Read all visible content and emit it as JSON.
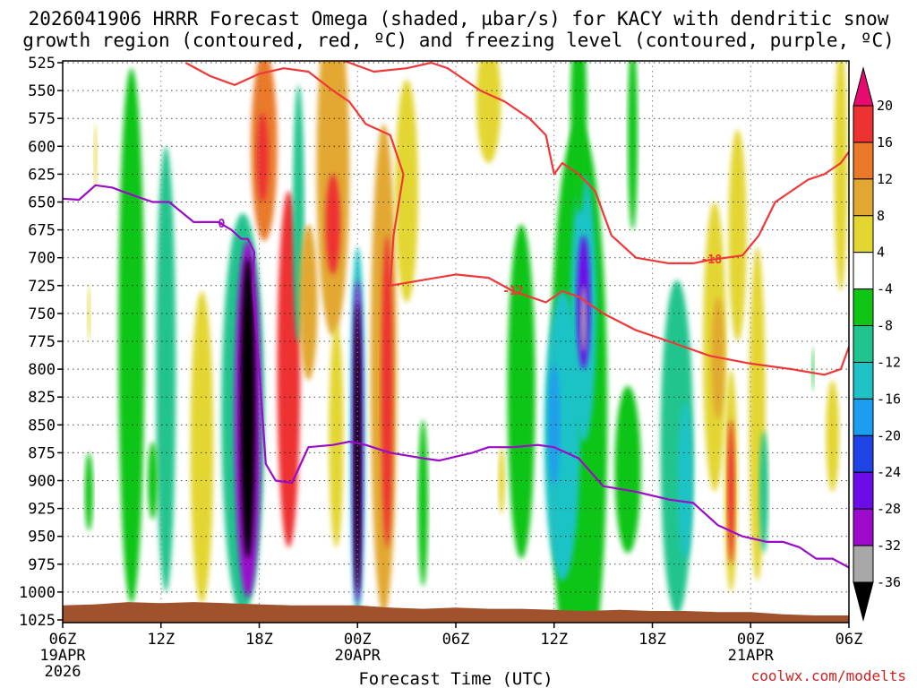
{
  "chart_data": {
    "type": "heatmap",
    "title_line1": "2026041906 HRRR Forecast Omega (shaded, µbar/s) for KACY with dendritic snow",
    "title_line2": "growth region (contoured, red, ºC) and freezing level (contoured, purple, ºC)",
    "xlabel": "Forecast Time (UTC)",
    "credit": "coolwx.com/modelts",
    "y_ticks": [
      525,
      550,
      575,
      600,
      625,
      650,
      675,
      700,
      725,
      750,
      775,
      800,
      825,
      850,
      875,
      900,
      925,
      950,
      975,
      1000,
      1025
    ],
    "ylim": [
      1030,
      520
    ],
    "x_range_hours": [
      0,
      48
    ],
    "x_ticks": [
      {
        "hour": 0,
        "label": "06Z",
        "date": "19APR",
        "year": "2026"
      },
      {
        "hour": 6,
        "label": "12Z",
        "date": "",
        "year": ""
      },
      {
        "hour": 12,
        "label": "18Z",
        "date": "",
        "year": ""
      },
      {
        "hour": 18,
        "label": "00Z",
        "date": "20APR",
        "year": ""
      },
      {
        "hour": 24,
        "label": "06Z",
        "date": "",
        "year": ""
      },
      {
        "hour": 30,
        "label": "12Z",
        "date": "",
        "year": ""
      },
      {
        "hour": 36,
        "label": "18Z",
        "date": "",
        "year": ""
      },
      {
        "hour": 42,
        "label": "00Z",
        "date": "21APR",
        "year": ""
      },
      {
        "hour": 48,
        "label": "06Z",
        "date": "",
        "year": ""
      }
    ],
    "colorbar": {
      "labels": [
        "20",
        "16",
        "12",
        "8",
        "4",
        "-4",
        "-8",
        "-12",
        "-16",
        "-20",
        "-24",
        "-28",
        "-32",
        "-36"
      ],
      "colors": [
        "#e80b6f",
        "#ee3131",
        "#ea7a2a",
        "#e2a832",
        "#e3d630",
        "#ffffff",
        "#10c515",
        "#21c48e",
        "#1fc3c6",
        "#1b9ef0",
        "#1f44e5",
        "#6d0ce9",
        "#9d0ccd",
        "#a8a8a8",
        "#000000"
      ]
    },
    "omega_features": [
      {
        "hour": 5.5,
        "p": 900,
        "w": 0.6,
        "h": 70,
        "value": -6
      },
      {
        "hour": 4.2,
        "p": 770,
        "w": 1.6,
        "h": 480,
        "value": -6
      },
      {
        "hour": 6.3,
        "p": 800,
        "w": 1.2,
        "h": 400,
        "value": -8
      },
      {
        "hour": 8.5,
        "p": 870,
        "w": 1.4,
        "h": 280,
        "value": 5
      },
      {
        "hour": 11.0,
        "p": 840,
        "w": 2.6,
        "h": 360,
        "value": -10
      },
      {
        "hour": 11.3,
        "p": 845,
        "w": 1.6,
        "h": 320,
        "value": -30
      },
      {
        "hour": 11.3,
        "p": 835,
        "w": 0.9,
        "h": 270,
        "value": -40
      },
      {
        "hour": 13.8,
        "p": 800,
        "w": 1.4,
        "h": 320,
        "value": 19
      },
      {
        "hour": 15.0,
        "p": 740,
        "w": 1.1,
        "h": 140,
        "value": 8
      },
      {
        "hour": 12.3,
        "p": 600,
        "w": 1.6,
        "h": 170,
        "value": 14
      },
      {
        "hour": 12.2,
        "p": 610,
        "w": 0.7,
        "h": 80,
        "value": 18
      },
      {
        "hour": 14.4,
        "p": 660,
        "w": 0.7,
        "h": 230,
        "value": -10
      },
      {
        "hour": 16.5,
        "p": 620,
        "w": 2.0,
        "h": 300,
        "value": 10
      },
      {
        "hour": 16.5,
        "p": 670,
        "w": 0.9,
        "h": 90,
        "value": 17
      },
      {
        "hour": 16.7,
        "p": 860,
        "w": 0.9,
        "h": 200,
        "value": 5
      },
      {
        "hour": 18.0,
        "p": 855,
        "w": 0.9,
        "h": 330,
        "value": -14
      },
      {
        "hour": 18.0,
        "p": 865,
        "w": 0.65,
        "h": 290,
        "value": -30
      },
      {
        "hour": 18.0,
        "p": 870,
        "w": 0.4,
        "h": 260,
        "value": -40
      },
      {
        "hour": 19.6,
        "p": 800,
        "w": 1.6,
        "h": 440,
        "value": 9
      },
      {
        "hour": 19.8,
        "p": 820,
        "w": 0.7,
        "h": 280,
        "value": 19
      },
      {
        "hour": 21.0,
        "p": 640,
        "w": 1.4,
        "h": 200,
        "value": 5
      },
      {
        "hour": 22.0,
        "p": 920,
        "w": 0.6,
        "h": 150,
        "value": -6
      },
      {
        "hour": 26.0,
        "p": 560,
        "w": 1.5,
        "h": 110,
        "value": 5
      },
      {
        "hour": 28.0,
        "p": 820,
        "w": 1.7,
        "h": 300,
        "value": -7
      },
      {
        "hour": 30.5,
        "p": 860,
        "w": 2.2,
        "h": 260,
        "value": -12
      },
      {
        "hour": 30.0,
        "p": 850,
        "w": 0.7,
        "h": 110,
        "value": -18
      },
      {
        "hour": 31.5,
        "p": 840,
        "w": 3.5,
        "h": 520,
        "value": -6
      },
      {
        "hour": 31.8,
        "p": 745,
        "w": 1.6,
        "h": 240,
        "value": -12
      },
      {
        "hour": 31.8,
        "p": 740,
        "w": 0.8,
        "h": 120,
        "value": -24
      },
      {
        "hour": 31.8,
        "p": 755,
        "w": 0.35,
        "h": 60,
        "value": -34
      },
      {
        "hour": 31.5,
        "p": 570,
        "w": 1.0,
        "h": 180,
        "value": -6
      },
      {
        "hour": 34.8,
        "p": 590,
        "w": 0.6,
        "h": 170,
        "value": -6
      },
      {
        "hour": 34.5,
        "p": 890,
        "w": 1.6,
        "h": 150,
        "value": -6
      },
      {
        "hour": 37.5,
        "p": 870,
        "w": 2.0,
        "h": 300,
        "value": -9
      },
      {
        "hour": 38.0,
        "p": 900,
        "w": 0.9,
        "h": 140,
        "value": -14
      },
      {
        "hour": 39.8,
        "p": 780,
        "w": 1.4,
        "h": 260,
        "value": 5
      },
      {
        "hour": 40.0,
        "p": 790,
        "w": 0.8,
        "h": 110,
        "value": 10
      },
      {
        "hour": 40.8,
        "p": 900,
        "w": 0.8,
        "h": 200,
        "value": 6
      },
      {
        "hour": 40.8,
        "p": 910,
        "w": 0.45,
        "h": 130,
        "value": 19
      },
      {
        "hour": 42.4,
        "p": 840,
        "w": 1.0,
        "h": 300,
        "value": 5
      },
      {
        "hour": 41.2,
        "p": 680,
        "w": 1.1,
        "h": 190,
        "value": 4.5
      },
      {
        "hour": 42.8,
        "p": 910,
        "w": 0.55,
        "h": 110,
        "value": -10
      },
      {
        "hour": 45.8,
        "p": 800,
        "w": 0.15,
        "h": 40,
        "value": -6
      },
      {
        "hour": 47.5,
        "p": 620,
        "w": 0.8,
        "h": 220,
        "value": 5
      },
      {
        "hour": 47.0,
        "p": 860,
        "w": 0.8,
        "h": 100,
        "value": 5
      },
      {
        "hour": 2.0,
        "p": 610,
        "w": 0.2,
        "h": 60,
        "value": 5
      },
      {
        "hour": 1.6,
        "p": 750,
        "w": 0.2,
        "h": 50,
        "value": 5
      },
      {
        "hour": 1.6,
        "p": 910,
        "w": 0.5,
        "h": 70,
        "value": -6
      },
      {
        "hour": 26.8,
        "p": 900,
        "w": 0.4,
        "h": 60,
        "value": 5
      }
    ],
    "series": [
      {
        "name": "dendritic growth -12C",
        "color": "#f03838",
        "label": "-12",
        "label_hour": 27.5,
        "points": [
          [
            7.5,
            525
          ],
          [
            9.0,
            537
          ],
          [
            10.5,
            545
          ],
          [
            12.0,
            535
          ],
          [
            13.5,
            530
          ],
          [
            15.0,
            533
          ],
          [
            16.5,
            550
          ],
          [
            17.5,
            560
          ],
          [
            18.5,
            580
          ],
          [
            20.0,
            590
          ],
          [
            20.8,
            625
          ],
          [
            20.2,
            680
          ],
          [
            20.0,
            725
          ],
          [
            22.0,
            720
          ],
          [
            24.0,
            715
          ],
          [
            26.0,
            718
          ],
          [
            27.5,
            730
          ],
          [
            28.5,
            735
          ],
          [
            29.5,
            740
          ],
          [
            30.5,
            730
          ],
          [
            31.5,
            735
          ],
          [
            33.0,
            750
          ],
          [
            35.0,
            765
          ],
          [
            37.0,
            775
          ],
          [
            39.5,
            788
          ],
          [
            42.0,
            795
          ],
          [
            44.5,
            800
          ],
          [
            46.5,
            805
          ],
          [
            47.5,
            800
          ],
          [
            48.0,
            780
          ]
        ]
      },
      {
        "name": "dendritic growth -18C",
        "color": "#f03838",
        "label": "-18",
        "label_hour": 39.6,
        "points": [
          [
            16.5,
            520
          ],
          [
            17.5,
            525
          ],
          [
            19.0,
            533
          ],
          [
            21.0,
            530
          ],
          [
            22.5,
            525
          ],
          [
            23.5,
            530
          ],
          [
            25.5,
            550
          ],
          [
            27.0,
            560
          ],
          [
            28.5,
            575
          ],
          [
            29.5,
            590
          ],
          [
            30.0,
            625
          ],
          [
            30.5,
            615
          ],
          [
            31.5,
            625
          ],
          [
            32.5,
            640
          ],
          [
            33.0,
            660
          ],
          [
            33.5,
            680
          ],
          [
            35.0,
            700
          ],
          [
            37.0,
            705
          ],
          [
            38.5,
            705
          ],
          [
            39.5,
            702
          ],
          [
            40.5,
            700
          ],
          [
            41.5,
            698
          ],
          [
            42.5,
            680
          ],
          [
            43.5,
            650
          ],
          [
            44.5,
            640
          ],
          [
            45.5,
            630
          ],
          [
            46.5,
            625
          ],
          [
            47.5,
            615
          ],
          [
            48.0,
            605
          ]
        ]
      },
      {
        "name": "freezing level 0C",
        "color": "#9a0cc8",
        "label": "0",
        "label_hour": 9.7,
        "points": [
          [
            0,
            647
          ],
          [
            1.0,
            648
          ],
          [
            2.0,
            635
          ],
          [
            3.0,
            637
          ],
          [
            4.5,
            645
          ],
          [
            5.5,
            650
          ],
          [
            6.5,
            650
          ],
          [
            8.0,
            668
          ],
          [
            9.5,
            668
          ],
          [
            10.3,
            675
          ],
          [
            10.9,
            683
          ],
          [
            11.3,
            683
          ],
          [
            11.7,
            695
          ],
          [
            11.6,
            725
          ],
          [
            12.0,
            800
          ],
          [
            12.4,
            885
          ],
          [
            13.0,
            900
          ],
          [
            14.0,
            902
          ],
          [
            15.0,
            870
          ],
          [
            16.5,
            868
          ],
          [
            17.5,
            865
          ],
          [
            18.5,
            868
          ],
          [
            20.0,
            875
          ],
          [
            22.0,
            880
          ],
          [
            23.0,
            882
          ],
          [
            25.0,
            875
          ],
          [
            26.0,
            870
          ],
          [
            27.5,
            870
          ],
          [
            29.0,
            868
          ],
          [
            30.0,
            870
          ],
          [
            31.5,
            880
          ],
          [
            33.0,
            905
          ],
          [
            35.0,
            910
          ],
          [
            37.0,
            917
          ],
          [
            38.5,
            920
          ],
          [
            40.0,
            940
          ],
          [
            41.5,
            950
          ],
          [
            43.0,
            955
          ],
          [
            44.0,
            955
          ],
          [
            45.0,
            960
          ],
          [
            46.0,
            970
          ],
          [
            47.0,
            970
          ],
          [
            48.0,
            978
          ]
        ]
      },
      {
        "name": "terrain",
        "color": "#a0522d",
        "label": "",
        "label_hour": 0,
        "points": [
          [
            0,
            1012
          ],
          [
            2,
            1011
          ],
          [
            4,
            1009
          ],
          [
            6,
            1010
          ],
          [
            8,
            1009
          ],
          [
            10,
            1010
          ],
          [
            12,
            1011
          ],
          [
            14,
            1012
          ],
          [
            16,
            1012
          ],
          [
            18,
            1012
          ],
          [
            20,
            1014
          ],
          [
            22,
            1015
          ],
          [
            24,
            1014
          ],
          [
            26,
            1015
          ],
          [
            28,
            1015
          ],
          [
            30,
            1016
          ],
          [
            32,
            1017
          ],
          [
            34,
            1016
          ],
          [
            36,
            1017
          ],
          [
            38,
            1017
          ],
          [
            40,
            1018
          ],
          [
            42,
            1018
          ],
          [
            44,
            1020
          ],
          [
            46,
            1021
          ],
          [
            48,
            1021
          ]
        ]
      }
    ]
  }
}
